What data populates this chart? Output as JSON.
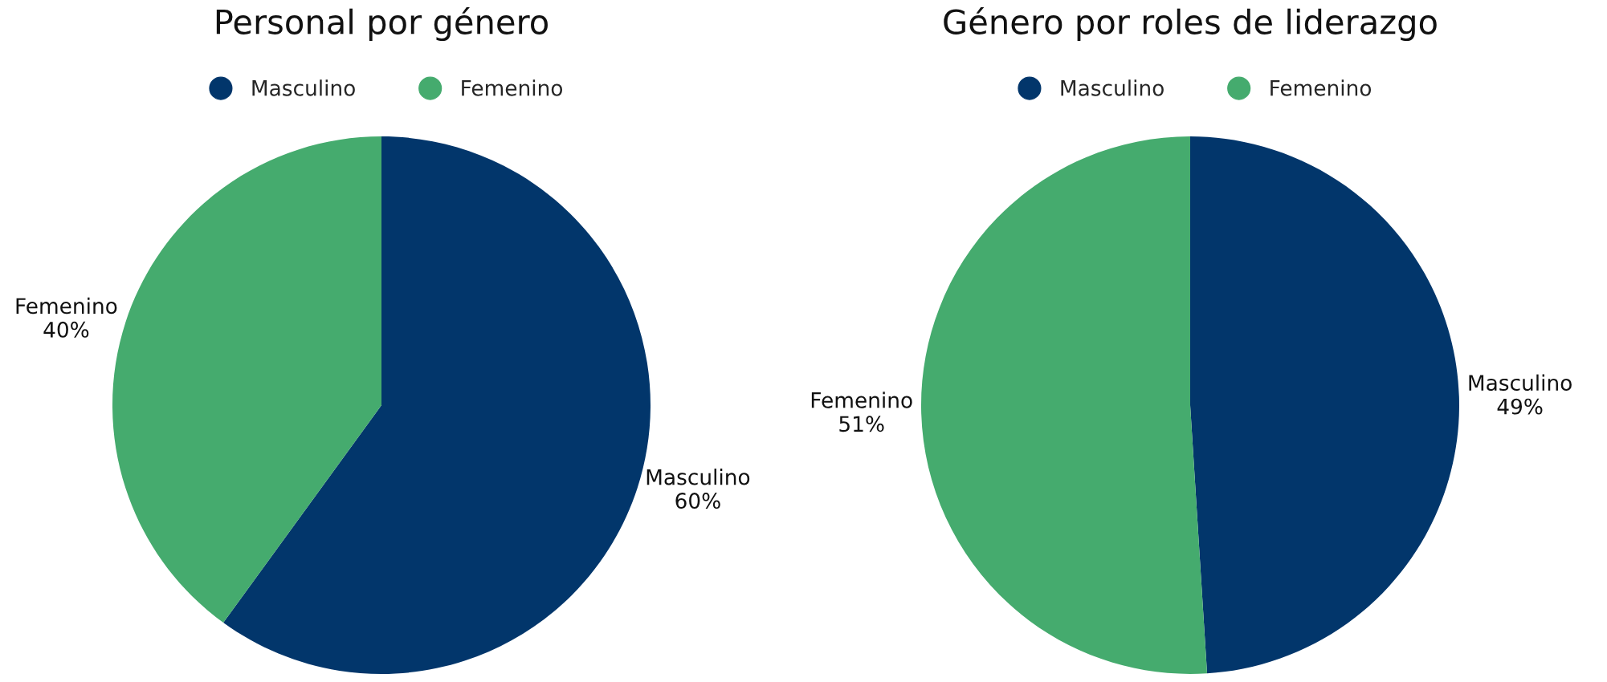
{
  "chart_data": [
    {
      "type": "pie",
      "title": "Personal por género",
      "categories": [
        "Masculino",
        "Femenino"
      ],
      "values": [
        60,
        40
      ],
      "colors": [
        "#02366b",
        "#45ab6e"
      ],
      "value_labels": [
        "60%",
        "40%"
      ],
      "legend": "top"
    },
    {
      "type": "pie",
      "title": "Género por roles de liderazgo",
      "categories": [
        "Masculino",
        "Femenino"
      ],
      "values": [
        49,
        51
      ],
      "colors": [
        "#02366b",
        "#45ab6e"
      ],
      "value_labels": [
        "49%",
        "51%"
      ],
      "legend": "top"
    }
  ]
}
